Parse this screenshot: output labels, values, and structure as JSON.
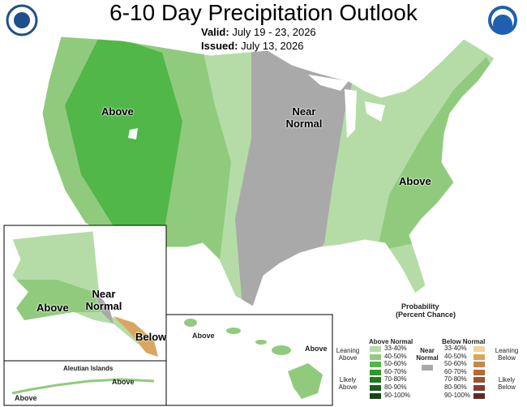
{
  "header": {
    "title": "6-10 Day Precipitation Outlook",
    "valid_label": "Valid:",
    "valid": "July 19 - 23, 2026",
    "issued_label": "Issued:",
    "issued": "July 13, 2026"
  },
  "conus_labels": [
    "Above",
    "Near Normal",
    "Above"
  ],
  "alaska_labels": [
    "Above",
    "Near Normal",
    "Below"
  ],
  "aleutian": {
    "title": "Aleutian Islands",
    "labels": [
      "Above",
      "Above"
    ]
  },
  "hawaii_labels": [
    "Above",
    "Above"
  ],
  "legend": {
    "title": "Probability",
    "subtitle": "(Percent Chance)",
    "above_header": "Above Normal",
    "below_header": "Below Normal",
    "near": "Near Normal",
    "near_color": "#a9a9a9",
    "above_bins": [
      {
        "label": "33-40%",
        "color": "#b5dca7"
      },
      {
        "label": "40-50%",
        "color": "#90cb7d"
      },
      {
        "label": "50-60%",
        "color": "#51b748"
      },
      {
        "label": "60-70%",
        "color": "#2e9a2a"
      },
      {
        "label": "70-80%",
        "color": "#1f7a1f"
      },
      {
        "label": "80-90%",
        "color": "#1e5c1e"
      },
      {
        "label": "90-100%",
        "color": "#1b431b"
      }
    ],
    "below_bins": [
      {
        "label": "33-40%",
        "color": "#f0d59a"
      },
      {
        "label": "40-50%",
        "color": "#d9a661"
      },
      {
        "label": "50-60%",
        "color": "#c5874c"
      },
      {
        "label": "60-70%",
        "color": "#b06b3d"
      },
      {
        "label": "70-80%",
        "color": "#9a5431"
      },
      {
        "label": "80-90%",
        "color": "#7e3f2a"
      },
      {
        "label": "90-100%",
        "color": "#5b2c25"
      }
    ],
    "leaning_above": "Leaning Above",
    "likely_above": "Likely Above",
    "leaning_below": "Leaning Below",
    "likely_below": "Likely Below"
  }
}
